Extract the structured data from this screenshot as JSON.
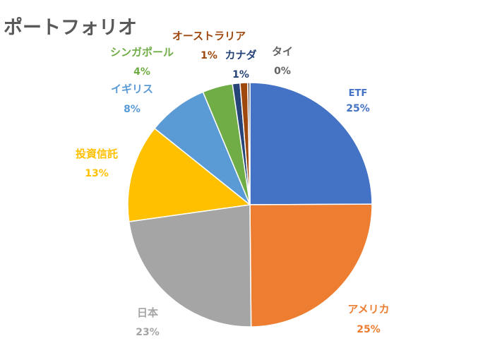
{
  "chart_data": {
    "type": "pie",
    "title": "ポートフォリオ",
    "slices": [
      {
        "label": "ETF",
        "value": 25,
        "value_label": "25%",
        "color": "#4472C4"
      },
      {
        "label": "アメリカ",
        "value": 25,
        "value_label": "25%",
        "color": "#ED7D31"
      },
      {
        "label": "日本",
        "value": 23,
        "value_label": "23%",
        "color": "#A5A5A5"
      },
      {
        "label": "投資信託",
        "value": 13,
        "value_label": "13%",
        "color": "#FFC000"
      },
      {
        "label": "イギリス",
        "value": 8,
        "value_label": "8%",
        "color": "#5B9BD5"
      },
      {
        "label": "シンガポール",
        "value": 4,
        "value_label": "4%",
        "color": "#70AD47"
      },
      {
        "label": "カナダ",
        "value": 1,
        "value_label": "1%",
        "color": "#264478"
      },
      {
        "label": "オーストラリア",
        "value": 1,
        "value_label": "1%",
        "color": "#9E480E"
      },
      {
        "label": "タイ",
        "value": 0.3,
        "value_label": "0%",
        "color": "#636363"
      }
    ],
    "legend": "none",
    "data_labels": "outside"
  }
}
